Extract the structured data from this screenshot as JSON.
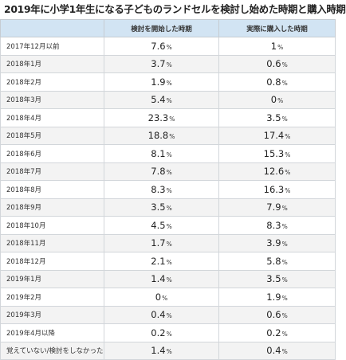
{
  "title": "2019年に小学1年生になる子どものランドセルを検討し始めた時期と購入時期",
  "headers": [
    "",
    "検討を開始した時期",
    "実際に購入した時期"
  ],
  "unit": "%",
  "rows": [
    {
      "label": "2017年12月以前",
      "start": "7.6",
      "purchase": "1"
    },
    {
      "label": "2018年1月",
      "start": "3.7",
      "purchase": "0.6"
    },
    {
      "label": "2018年2月",
      "start": "1.9",
      "purchase": "0.8"
    },
    {
      "label": "2018年3月",
      "start": "5.4",
      "purchase": "0"
    },
    {
      "label": "2018年4月",
      "start": "23.3",
      "purchase": "3.5"
    },
    {
      "label": "2018年5月",
      "start": "18.8",
      "purchase": "17.4"
    },
    {
      "label": "2018年6月",
      "start": "8.1",
      "purchase": "15.3"
    },
    {
      "label": "2018年7月",
      "start": "7.8",
      "purchase": "12.6"
    },
    {
      "label": "2018年8月",
      "start": "8.3",
      "purchase": "16.3"
    },
    {
      "label": "2018年9月",
      "start": "3.5",
      "purchase": "7.9"
    },
    {
      "label": "2018年10月",
      "start": "4.5",
      "purchase": "8.3"
    },
    {
      "label": "2018年11月",
      "start": "1.7",
      "purchase": "3.9"
    },
    {
      "label": "2018年12月",
      "start": "2.1",
      "purchase": "5.8"
    },
    {
      "label": "2019年1月",
      "start": "1.4",
      "purchase": "3.5"
    },
    {
      "label": "2019年2月",
      "start": "0",
      "purchase": "1.9"
    },
    {
      "label": "2019年3月",
      "start": "0.4",
      "purchase": "0.6"
    },
    {
      "label": "2019年4月以降",
      "start": "0.2",
      "purchase": "0.2"
    },
    {
      "label": "覚えていない/検討をしなかった",
      "start": "1.4",
      "purchase": "0.4"
    }
  ]
}
